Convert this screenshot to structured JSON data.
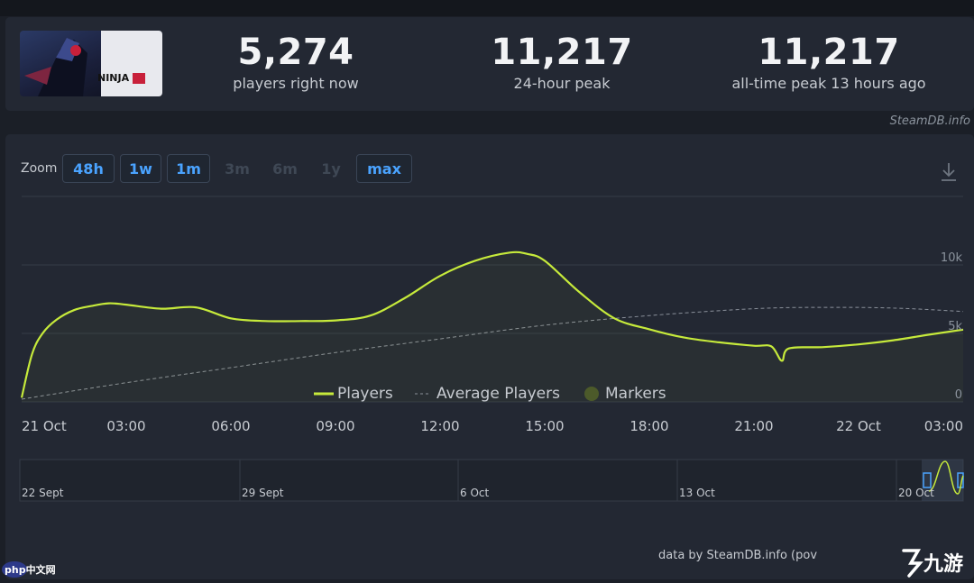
{
  "stats": [
    {
      "value": "5,274",
      "label": "players right now"
    },
    {
      "value": "11,217",
      "label": "24-hour peak"
    },
    {
      "value": "11,217",
      "label": "all-time peak 13 hours ago"
    }
  ],
  "game_logo_text": "NINJA",
  "credit": "SteamDB.info",
  "zoom": {
    "label": "Zoom",
    "buttons": [
      {
        "label": "48h",
        "active": true
      },
      {
        "label": "1w",
        "active": true
      },
      {
        "label": "1m",
        "active": true
      },
      {
        "label": "3m",
        "active": false
      },
      {
        "label": "6m",
        "active": false
      },
      {
        "label": "1y",
        "active": false
      },
      {
        "label": "max",
        "active": true
      }
    ]
  },
  "navigator_labels": [
    "22 Sept",
    "29 Sept",
    "6 Oct",
    "13 Oct",
    "20 Oct"
  ],
  "legend": {
    "players": "Players",
    "average": "Average Players",
    "markers": "Markers"
  },
  "footer_credit": "data by SteamDB.info (pov",
  "watermark_left": "php中文网",
  "watermark_right": "九游",
  "colors": {
    "players_line": "#c6ea3b",
    "average_line": "#8a909a",
    "accent_blue": "#4aa3ff",
    "panel_bg": "#232833"
  },
  "chart_data": {
    "type": "line",
    "x_tick_labels": [
      "21 Oct",
      "03:00",
      "06:00",
      "09:00",
      "12:00",
      "15:00",
      "18:00",
      "21:00",
      "22 Oct",
      "03:00"
    ],
    "x_hours_range": [
      0,
      27
    ],
    "y_tick_labels": [
      "0",
      "5k",
      "10k"
    ],
    "ylim": [
      0,
      15000
    ],
    "grid": true,
    "legend_position": "bottom",
    "series": [
      {
        "name": "Players",
        "x_hours": [
          0,
          0.3,
          0.6,
          1,
          1.5,
          2,
          2.5,
          3,
          4,
          5,
          6,
          7,
          8,
          9,
          10,
          11,
          12,
          13,
          14,
          14.5,
          15,
          16,
          17,
          18,
          19,
          20,
          21,
          21.5,
          21.8,
          22,
          23,
          24,
          25,
          26,
          27
        ],
        "y": [
          300,
          3500,
          5000,
          6000,
          6700,
          7000,
          7200,
          7100,
          6800,
          6900,
          6100,
          5900,
          5900,
          5950,
          6300,
          7600,
          9200,
          10300,
          10900,
          10800,
          10300,
          8000,
          6100,
          5300,
          4700,
          4350,
          4100,
          4050,
          3000,
          3900,
          4000,
          4200,
          4500,
          4900,
          5274
        ]
      },
      {
        "name": "Average Players",
        "x_hours": [
          0,
          3,
          6,
          9,
          12,
          15,
          18,
          21,
          23,
          25,
          27
        ],
        "y": [
          200,
          1400,
          2500,
          3600,
          4600,
          5600,
          6300,
          6800,
          6900,
          6850,
          6600
        ]
      }
    ]
  }
}
